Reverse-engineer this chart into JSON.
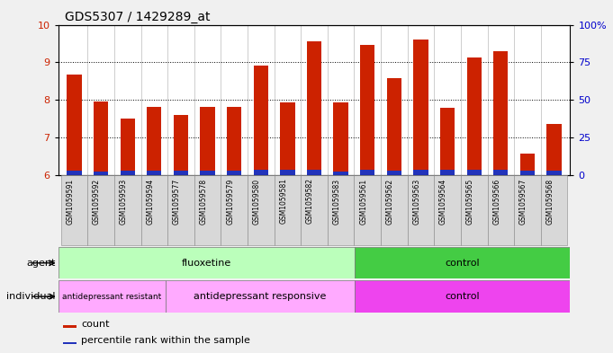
{
  "title": "GDS5307 / 1429289_at",
  "samples": [
    "GSM1059591",
    "GSM1059592",
    "GSM1059593",
    "GSM1059594",
    "GSM1059577",
    "GSM1059578",
    "GSM1059579",
    "GSM1059580",
    "GSM1059581",
    "GSM1059582",
    "GSM1059583",
    "GSM1059561",
    "GSM1059562",
    "GSM1059563",
    "GSM1059564",
    "GSM1059565",
    "GSM1059566",
    "GSM1059567",
    "GSM1059568"
  ],
  "count_values": [
    8.67,
    7.95,
    7.5,
    7.8,
    7.6,
    7.82,
    7.82,
    8.9,
    7.93,
    9.55,
    7.93,
    9.47,
    8.58,
    9.6,
    7.78,
    9.12,
    9.3,
    6.57,
    7.35
  ],
  "percentile_values": [
    0.12,
    0.08,
    0.1,
    0.12,
    0.1,
    0.1,
    0.1,
    0.13,
    0.13,
    0.13,
    0.08,
    0.13,
    0.12,
    0.13,
    0.13,
    0.13,
    0.13,
    0.1,
    0.1
  ],
  "ylim": [
    6,
    10
  ],
  "y_left_ticks": [
    6,
    7,
    8,
    9,
    10
  ],
  "y_right_ticks_pos": [
    6.0,
    7.0,
    8.0,
    9.0,
    10.0
  ],
  "y_right_labels": [
    "0",
    "25",
    "50",
    "75",
    "100%"
  ],
  "bar_color": "#cc2200",
  "percentile_color": "#2233bb",
  "bar_width": 0.55,
  "base": 6,
  "flu_n": 11,
  "resist_n": 4,
  "resp_n": 7,
  "ctrl_n": 8,
  "total_n": 19,
  "flu_color_light": "#bbffbb",
  "ctrl_agent_color": "#44cc44",
  "resist_color": "#ffaaff",
  "resp_color": "#ffaaff",
  "ctrl_ind_color": "#ee44ee",
  "label_bg": "#d8d8d8",
  "bg_color": "#ffffff",
  "fig_bg": "#f0f0f0",
  "title_fontsize": 10,
  "tick_fontsize": 8,
  "label_fontsize": 8,
  "group_fontsize": 8,
  "small_fontsize": 6.5
}
